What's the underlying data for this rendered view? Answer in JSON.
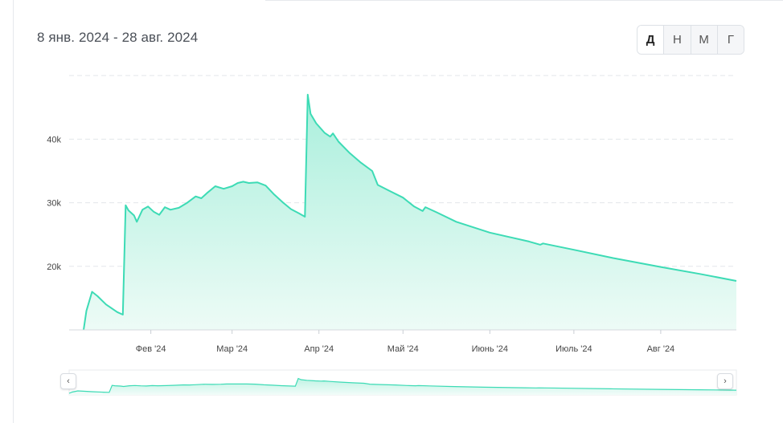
{
  "header": {
    "date_range": "8 янв. 2024 - 28 авг. 2024"
  },
  "periods": [
    {
      "label": "Д",
      "active": true
    },
    {
      "label": "Н",
      "active": false
    },
    {
      "label": "М",
      "active": false
    },
    {
      "label": "Г",
      "active": false
    }
  ],
  "navigator": {
    "left_icon": "chevron-left-icon",
    "right_icon": "chevron-right-icon"
  },
  "colors": {
    "line": "#3ddbb5",
    "fill_top": "#a9efdc",
    "fill_bottom": "#edfbf6",
    "grid": "#e3e6ea"
  },
  "chart_data": {
    "type": "area",
    "title": "",
    "xlabel": "",
    "ylabel": "",
    "ylim": [
      0,
      50000
    ],
    "yticks": [
      20000,
      30000,
      40000
    ],
    "ytick_labels": [
      "20k",
      "30k",
      "40k"
    ],
    "grid": true,
    "x_start": "2024-01-08",
    "x_end": "2024-08-28",
    "xtick_dates": [
      "2024-02-01",
      "2024-03-01",
      "2024-04-01",
      "2024-05-01",
      "2024-06-01",
      "2024-07-01",
      "2024-08-01"
    ],
    "xtick_labels": [
      "Фев '24",
      "Мар '24",
      "Апр '24",
      "Май '24",
      "Июнь '24",
      "Июль '24",
      "Авг '24"
    ],
    "series": [
      {
        "points": [
          [
            "2024-01-08",
            10000
          ],
          [
            "2024-01-09",
            13000
          ],
          [
            "2024-01-11",
            16000
          ],
          [
            "2024-01-13",
            15300
          ],
          [
            "2024-01-16",
            14000
          ],
          [
            "2024-01-20",
            12800
          ],
          [
            "2024-01-22",
            12400
          ],
          [
            "2024-01-23",
            29600
          ],
          [
            "2024-01-24",
            28800
          ],
          [
            "2024-01-26",
            28000
          ],
          [
            "2024-01-27",
            27000
          ],
          [
            "2024-01-29",
            28900
          ],
          [
            "2024-01-31",
            29400
          ],
          [
            "2024-02-02",
            28600
          ],
          [
            "2024-02-04",
            28100
          ],
          [
            "2024-02-06",
            29300
          ],
          [
            "2024-02-08",
            28900
          ],
          [
            "2024-02-11",
            29200
          ],
          [
            "2024-02-14",
            30000
          ],
          [
            "2024-02-17",
            31000
          ],
          [
            "2024-02-19",
            30700
          ],
          [
            "2024-02-21",
            31500
          ],
          [
            "2024-02-24",
            32600
          ],
          [
            "2024-02-27",
            32200
          ],
          [
            "2024-03-01",
            32600
          ],
          [
            "2024-03-03",
            33100
          ],
          [
            "2024-03-05",
            33300
          ],
          [
            "2024-03-07",
            33100
          ],
          [
            "2024-03-10",
            33200
          ],
          [
            "2024-03-13",
            32700
          ],
          [
            "2024-03-16",
            31300
          ],
          [
            "2024-03-19",
            30100
          ],
          [
            "2024-03-22",
            29000
          ],
          [
            "2024-03-25",
            28300
          ],
          [
            "2024-03-27",
            27800
          ],
          [
            "2024-03-28",
            47000
          ],
          [
            "2024-03-29",
            44000
          ],
          [
            "2024-03-31",
            42500
          ],
          [
            "2024-04-03",
            41000
          ],
          [
            "2024-04-05",
            40400
          ],
          [
            "2024-04-06",
            40900
          ],
          [
            "2024-04-08",
            39600
          ],
          [
            "2024-04-12",
            37800
          ],
          [
            "2024-04-16",
            36300
          ],
          [
            "2024-04-20",
            35000
          ],
          [
            "2024-04-22",
            32800
          ],
          [
            "2024-04-26",
            31900
          ],
          [
            "2024-05-01",
            30800
          ],
          [
            "2024-05-05",
            29400
          ],
          [
            "2024-05-08",
            28700
          ],
          [
            "2024-05-09",
            29300
          ],
          [
            "2024-05-13",
            28500
          ],
          [
            "2024-05-20",
            27000
          ],
          [
            "2024-06-01",
            25300
          ],
          [
            "2024-06-15",
            23900
          ],
          [
            "2024-06-19",
            23400
          ],
          [
            "2024-06-20",
            23600
          ],
          [
            "2024-07-01",
            22600
          ],
          [
            "2024-07-15",
            21300
          ],
          [
            "2024-08-01",
            19900
          ],
          [
            "2024-08-15",
            18800
          ],
          [
            "2024-08-28",
            17700
          ]
        ]
      }
    ]
  }
}
